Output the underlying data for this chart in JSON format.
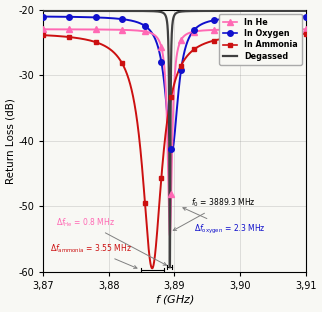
{
  "xlabel": "$f$ (GHz)",
  "ylabel": "Return Loss (dB)",
  "xlim": [
    3.87,
    3.91
  ],
  "ylim": [
    -60,
    -20
  ],
  "yticks": [
    -60,
    -50,
    -40,
    -30,
    -20
  ],
  "xticks": [
    3.87,
    3.88,
    3.89,
    3.9,
    3.91
  ],
  "xtick_labels": [
    "3,87",
    "3,88",
    "3,89",
    "3,90",
    "3,91"
  ],
  "f0_he": 3.8893,
  "f0_oxygen": 3.8896,
  "f0_ammonia": 3.8866,
  "f0_deg": 3.8893,
  "BW_he": 0.0008,
  "BW_oxygen": 0.0023,
  "BW_ammonia": 0.00355,
  "BW_deg": 0.00018,
  "base_He": -23.0,
  "base_Oxy": -21.0,
  "base_Amm": -23.5,
  "base_Deg": -20.2,
  "min_He": -54.5,
  "min_Oxy": -41.5,
  "min_Amm": -59.5,
  "min_Deg": -59.8,
  "color_He": "#FF69B4",
  "color_Oxygen": "#1010CC",
  "color_Ammonia": "#CC1010",
  "color_Degassed": "#404040",
  "bgcolor": "#f8f8f4"
}
